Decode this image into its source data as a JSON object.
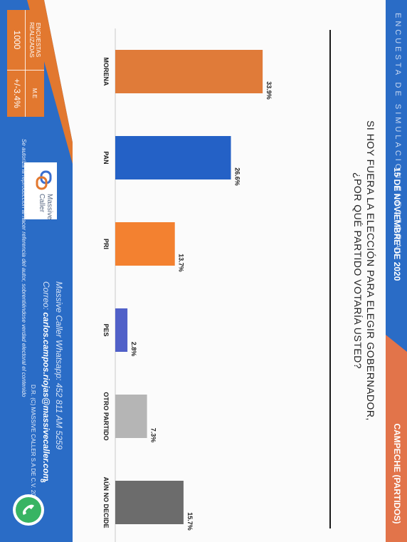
{
  "header": {
    "faint_title": "ENCUESTA DE SIMULACION ELECTORAL",
    "date": "15 DE NOVIEMBRE DE 2020",
    "region": "CAMPECHE (PARTIDOS)"
  },
  "question": {
    "line1": "SI HOY FUERA LA ELECCIÓN PARA ELEGIR GOBERNADOR,",
    "line2": "¿POR QUÉ PARTIDO VOTARÍA USTED?"
  },
  "chart_data": {
    "type": "bar",
    "categories": [
      "MORENA",
      "PAN",
      "PRI",
      "PES",
      "OTRO PARTIDO",
      "AÚN NO DECIDE"
    ],
    "values": [
      33.9,
      26.6,
      13.7,
      2.8,
      7.3,
      15.7
    ],
    "value_labels": [
      "33.9%",
      "26.6%",
      "13.7%",
      "2.8%",
      "7.3%",
      "15.7%"
    ],
    "colors": [
      "#e07b39",
      "#2461c6",
      "#f38130",
      "#5060c8",
      "#b5b5b5",
      "#6c6c6c"
    ],
    "title": "SI HOY FUERA LA ELECCIÓN PARA ELEGIR GOBERNADOR, ¿POR QUÉ PARTIDO VOTARÍA USTED?",
    "ylim": [
      0,
      40
    ],
    "grid": false,
    "legend": "none"
  },
  "stats": {
    "surveys_label": "ENCUESTAS REALIZADAS",
    "surveys_value": "1000",
    "me_label": "M.E",
    "me_value": "+/-3.4%"
  },
  "brand": {
    "name_line1": "Massive",
    "name_line2": "Caller"
  },
  "footer": {
    "whatsapp": "Massive Caller Whatsapp: 452 811 AM 5259",
    "email_label": "Correo:",
    "email": "carlos.campos.riojas@massivecaller.com",
    "rights": "D.R. (C) MASSIVE CALLER S.A DE C.V. 2020",
    "note": "Se autoriza la reproducción al hacer referencia del autor, sobrentiéndose verdad electoral el contenido",
    "page_number": "8"
  },
  "colors": {
    "blue": "#2a6cc6",
    "orange": "#e2782f",
    "header_accent": "#e2744a"
  }
}
